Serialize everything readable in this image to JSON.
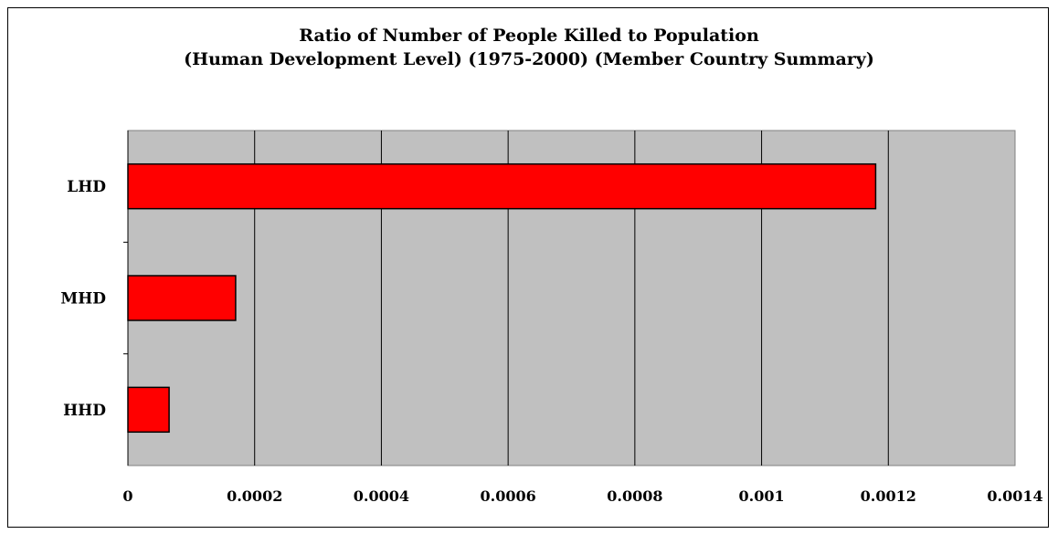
{
  "chart_data": {
    "type": "bar",
    "orientation": "horizontal",
    "title_line1": "Ratio of Number of People Killed to Population",
    "title_line2": "(Human Development Level) (1975-2000) (Member Country Summary)",
    "xlabel": "",
    "ylabel": "",
    "categories": [
      "LHD",
      "MHD",
      "HHD"
    ],
    "values": [
      0.00118,
      0.00017,
      6.5e-05
    ],
    "xlim": [
      0,
      0.0014
    ],
    "x_ticks": [
      "0",
      "0.0002",
      "0.0004",
      "0.0006",
      "0.0008",
      "0.001",
      "0.0012",
      "0.0014"
    ],
    "grid": true,
    "legend": "none",
    "colors": {
      "bar": "#ff0000",
      "plot_background": "#c0c0c0",
      "gridline": "#000000"
    }
  }
}
